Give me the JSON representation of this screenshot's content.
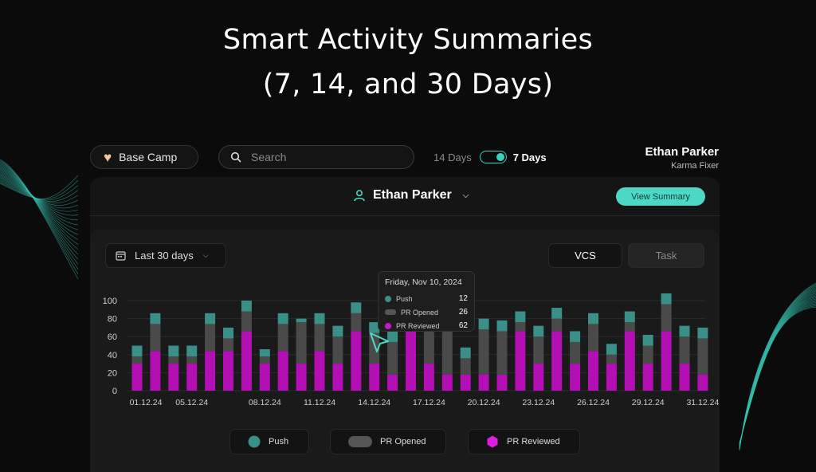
{
  "hero": {
    "line1": "Smart Activity Summaries",
    "line2": "(7, 14, and 30 Days)"
  },
  "topbar": {
    "workspace_label": "Base Camp",
    "workspace_icon": "heart-icon",
    "search_placeholder": "Search",
    "toggle_off_label": "14 Days",
    "toggle_on_label": "7 Days",
    "toggle_state": "on"
  },
  "user": {
    "name": "Ethan Parker",
    "role": "Karma Fixer"
  },
  "card": {
    "person_name": "Ethan Parker",
    "view_summary_label": "View Summary",
    "range_label": "Last 30 days",
    "tab_vcs": "VCS",
    "tab_task": "Task"
  },
  "colors": {
    "push": "#3a8f88",
    "pr_opened": "#4a4a4a",
    "pr_reviewed": "#b40fb4",
    "accent": "#4dd8c5"
  },
  "tooltip": {
    "date": "Friday, Nov 10, 2024",
    "rows": [
      {
        "label": "Push",
        "value": "12"
      },
      {
        "label": "PR Opened",
        "value": "26"
      },
      {
        "label": "PR Reviewed",
        "value": "62"
      }
    ]
  },
  "legend": [
    {
      "label": "Push"
    },
    {
      "label": "PR Opened"
    },
    {
      "label": "PR Reviewed"
    }
  ],
  "chart_data": {
    "type": "bar",
    "stacked": true,
    "ylim": [
      0,
      100
    ],
    "yticks": [
      0,
      20,
      40,
      60,
      80,
      100
    ],
    "xtick_labels": [
      {
        "index": 0,
        "label": "01.12.24"
      },
      {
        "index": 3,
        "label": "05.12.24"
      },
      {
        "index": 7,
        "label": "08.12.24"
      },
      {
        "index": 10,
        "label": "11.12.24"
      },
      {
        "index": 13,
        "label": "14.12.24"
      },
      {
        "index": 16,
        "label": "17.12.24"
      },
      {
        "index": 19,
        "label": "20.12.24"
      },
      {
        "index": 22,
        "label": "23.12.24"
      },
      {
        "index": 25,
        "label": "26.12.24"
      },
      {
        "index": 28,
        "label": "29.12.24"
      },
      {
        "index": 31,
        "label": "31.12.24"
      }
    ],
    "bar_count": 32,
    "series": [
      {
        "name": "PR Reviewed",
        "values": [
          30,
          44,
          30,
          30,
          44,
          44,
          66,
          30,
          44,
          30,
          44,
          30,
          66,
          30,
          18,
          66,
          30,
          18,
          18,
          18,
          18,
          66,
          30,
          66,
          30,
          44,
          30,
          66,
          30,
          66,
          30,
          18
        ]
      },
      {
        "name": "PR Opened",
        "values": [
          8,
          30,
          8,
          8,
          30,
          14,
          22,
          8,
          30,
          46,
          30,
          30,
          20,
          34,
          36,
          18,
          50,
          50,
          18,
          50,
          48,
          10,
          30,
          14,
          24,
          30,
          10,
          10,
          20,
          30,
          30,
          40
        ]
      },
      {
        "name": "Push",
        "values": [
          12,
          12,
          12,
          12,
          12,
          12,
          12,
          8,
          12,
          4,
          12,
          12,
          12,
          12,
          18,
          12,
          12,
          12,
          12,
          12,
          12,
          12,
          12,
          12,
          12,
          12,
          12,
          12,
          12,
          12,
          12,
          12
        ]
      }
    ]
  }
}
